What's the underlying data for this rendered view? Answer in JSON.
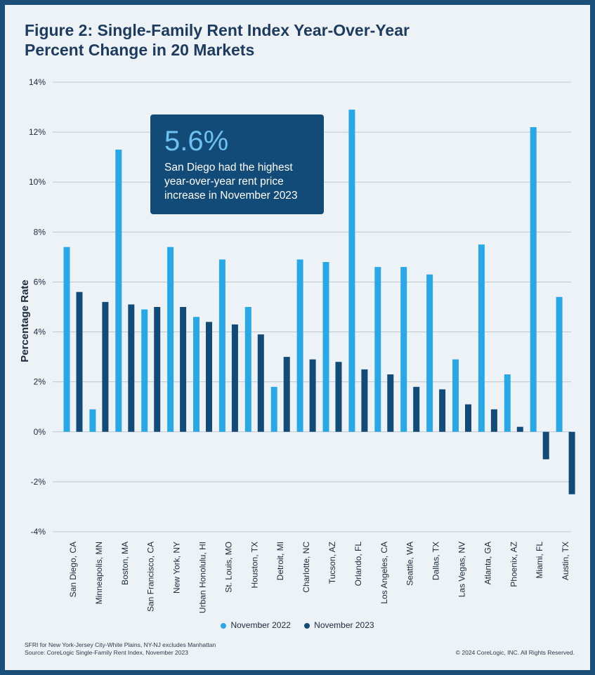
{
  "title_lines": [
    "Figure 2: Single-Family Rent Index Year-Over-Year",
    "Percent Change in 20 Markets"
  ],
  "callout": {
    "value": "5.6%",
    "text": "San Diego had the highest year-over-year rent price increase in November 2023"
  },
  "footer": {
    "note": "SFRI for New York-Jersey City-White Plains, NY-NJ excludes Manhattan",
    "source": "Source: CoreLogic Single-Family Rent Index, November 2023",
    "copyright": "© 2024 CoreLogic, INC. All Rights Reserved."
  },
  "colors": {
    "background": "#edf2f7",
    "border": "#1b4f7a",
    "series_2022": "#29a8e8",
    "series_2023": "#124a78",
    "grid": "#bfc7d1"
  },
  "chart_data": {
    "type": "bar",
    "title": "Figure 2: Single-Family Rent Index Year-Over-Year Percent Change in 20 Markets",
    "xlabel": "",
    "ylabel": "Percentage Rate",
    "ylim": [
      -4,
      14
    ],
    "yticks": [
      14,
      12,
      10,
      8,
      6,
      4,
      2,
      0,
      -2,
      -4
    ],
    "ytick_labels": [
      "14%",
      "12%",
      "10%",
      "8%",
      "6%",
      "4%",
      "2%",
      "0%",
      "-2%",
      "-4%"
    ],
    "grid": true,
    "legend_position": "bottom",
    "categories": [
      "San Diego, CA",
      "Minneapolis, MN",
      "Boston, MA",
      "San Francisco, CA",
      "New York, NY",
      "Urban Honolulu, HI",
      "St. Louis, MO",
      "Houston, TX",
      "Detroit, MI",
      "Charlotte, NC",
      "Tucson, AZ",
      "Orlando, FL",
      "Los Angeles, CA",
      "Seattle, WA",
      "Dallas, TX",
      "Las Vegas, NV",
      "Atlanta, GA",
      "Phoenix, AZ",
      "Miami, FL",
      "Austin, TX"
    ],
    "series": [
      {
        "name": "November 2022",
        "values": [
          7.4,
          0.9,
          11.3,
          4.9,
          7.4,
          4.6,
          6.9,
          5.0,
          1.8,
          6.9,
          6.8,
          12.9,
          6.6,
          6.6,
          6.3,
          2.9,
          7.5,
          2.3,
          12.2,
          5.4
        ]
      },
      {
        "name": "November 2023",
        "values": [
          5.6,
          5.2,
          5.1,
          5.0,
          5.0,
          4.4,
          4.3,
          3.9,
          3.0,
          2.9,
          2.8,
          2.5,
          2.3,
          1.8,
          1.7,
          1.1,
          0.9,
          0.2,
          -1.1,
          -2.5
        ]
      }
    ]
  }
}
